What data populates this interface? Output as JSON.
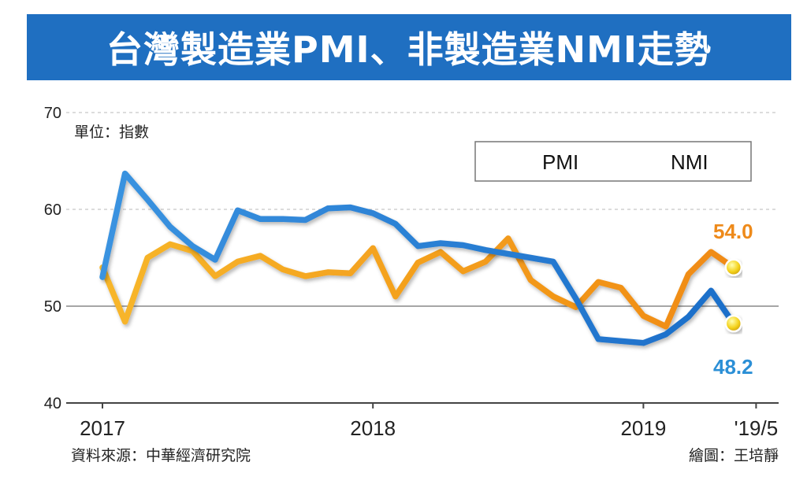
{
  "title": "台灣製造業PMI、非製造業NMI走勢",
  "unit_label": "單位：指數",
  "source_label": "資料來源：中華經濟研究院",
  "credit_label": "繪圖：王培靜",
  "colors": {
    "title_bg": "#1f6fc1",
    "pmi": "#1c7fd6",
    "nmi": "#f3a21d",
    "pmi_label": "#2b8fd6",
    "nmi_label": "#ee8a1a"
  },
  "chart_data": {
    "type": "line",
    "title": "台灣製造業PMI、非製造業NMI走勢",
    "ylabel": "單位：指數",
    "ylim": [
      40,
      70
    ],
    "yticks": [
      40,
      50,
      60,
      70
    ],
    "gridlines": "dashed at 60 and 70, solid at 50",
    "legend_position": "top-right",
    "x_tick_labels": [
      "2017",
      "2018",
      "2019",
      "'19/5"
    ],
    "x_tick_index": [
      0,
      12,
      24,
      29
    ],
    "series": [
      {
        "name": "PMI",
        "values": [
          53.0,
          63.7,
          61.0,
          58.2,
          56.2,
          54.8,
          59.9,
          59.0,
          59.0,
          58.9,
          60.1,
          60.2,
          59.6,
          58.5,
          56.2,
          56.5,
          56.3,
          55.8,
          55.4,
          55.0,
          54.6,
          50.8,
          46.6,
          46.4,
          46.2,
          47.1,
          48.9,
          51.6,
          48.2
        ]
      },
      {
        "name": "NMI",
        "values": [
          54.0,
          48.4,
          55.0,
          56.4,
          55.7,
          53.1,
          54.6,
          55.2,
          53.8,
          53.1,
          53.5,
          53.4,
          56.0,
          51.0,
          54.5,
          55.6,
          53.6,
          54.6,
          57.0,
          52.7,
          51.0,
          49.9,
          52.5,
          51.9,
          49.0,
          47.9,
          53.3,
          55.6,
          54.0
        ]
      }
    ],
    "end_labels": {
      "PMI": "48.2",
      "NMI": "54.0"
    }
  }
}
